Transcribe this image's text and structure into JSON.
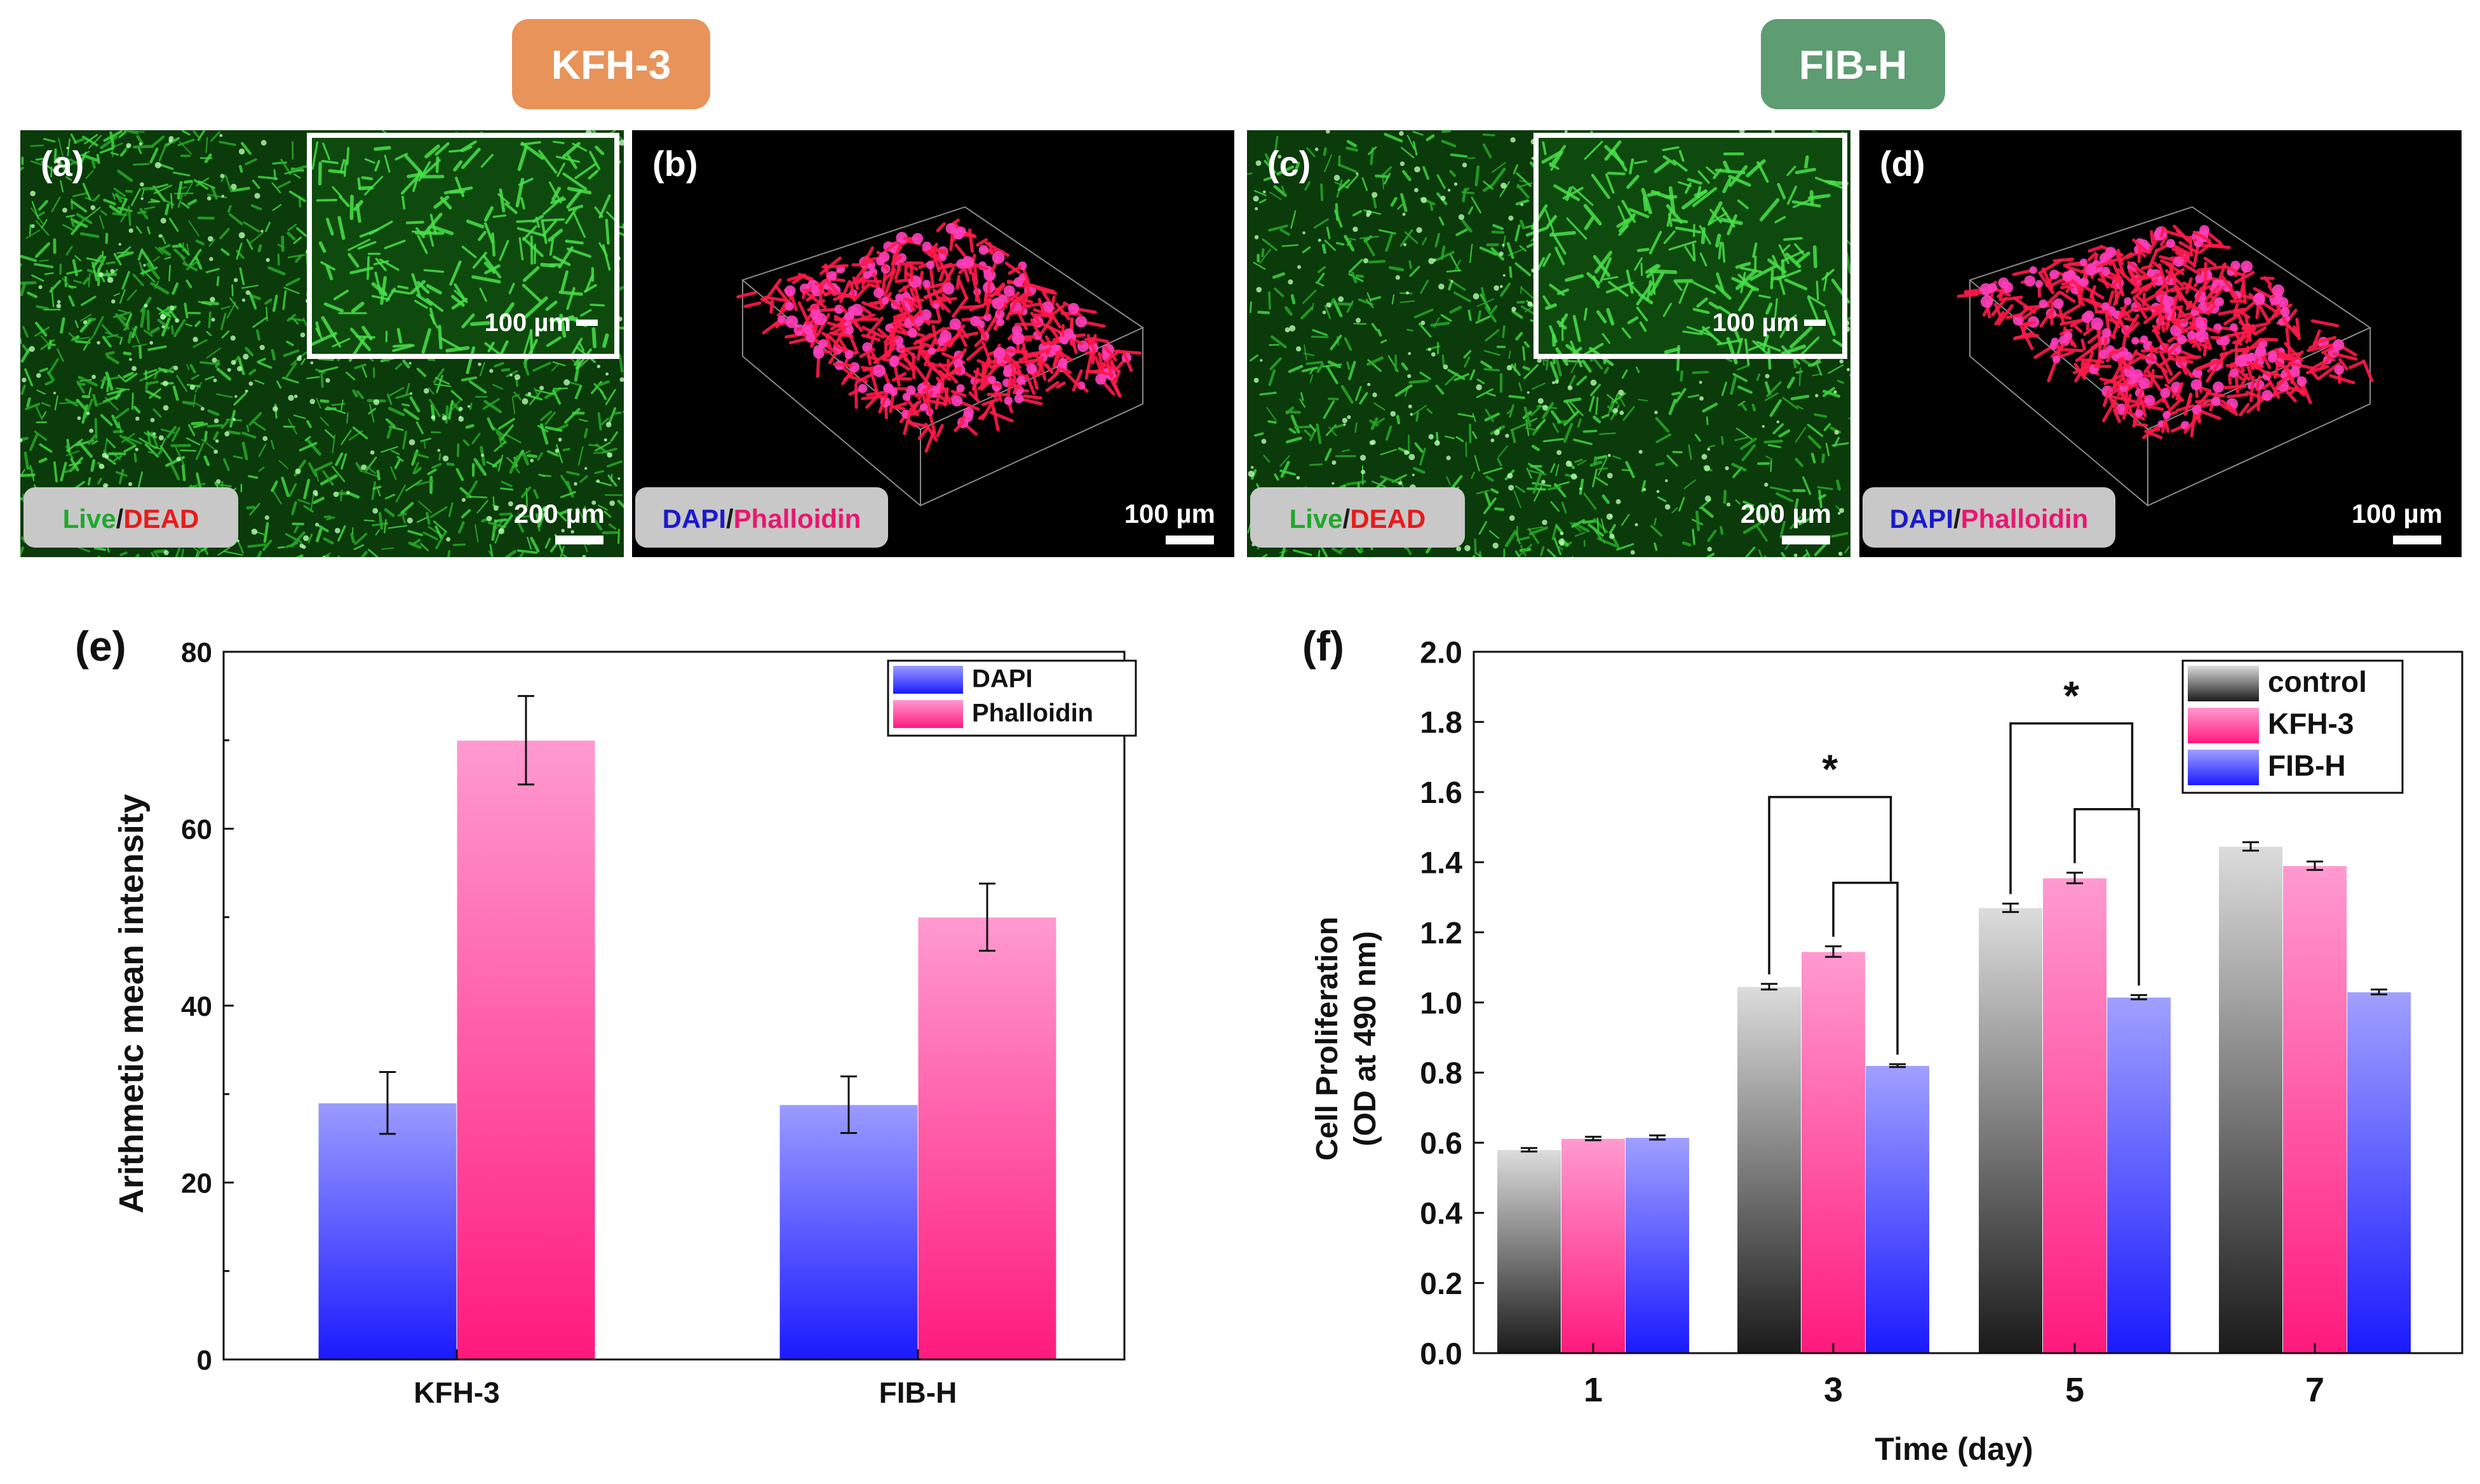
{
  "header_labels": [
    {
      "text": "KFH-3",
      "color": "#e8935a"
    },
    {
      "text": "FIB-H",
      "color": "#5e9c72"
    }
  ],
  "micrographs": [
    {
      "letter": "(a)",
      "kind": "live-dead",
      "has_inset": true,
      "inset_scale": "100 µm",
      "scale": "200 µm",
      "stain": [
        {
          "text": "Live",
          "color": "#1fa82b"
        },
        {
          "text": "/",
          "color": "#1a1a1a"
        },
        {
          "text": "DEAD",
          "color": "#e81b1b"
        }
      ]
    },
    {
      "letter": "(b)",
      "kind": "confocal-3d",
      "has_inset": false,
      "scale": "100 µm",
      "stain": [
        {
          "text": "DAPI",
          "color": "#1a1acc"
        },
        {
          "text": "/",
          "color": "#1a1a1a"
        },
        {
          "text": "Phalloidin",
          "color": "#e8176f"
        }
      ]
    },
    {
      "letter": "(c)",
      "kind": "live-dead",
      "has_inset": true,
      "inset_scale": "100 µm",
      "scale": "200 µm",
      "stain": [
        {
          "text": "Live",
          "color": "#1fa82b"
        },
        {
          "text": "/",
          "color": "#1a1a1a"
        },
        {
          "text": "DEAD",
          "color": "#e81b1b"
        }
      ]
    },
    {
      "letter": "(d)",
      "kind": "confocal-3d",
      "has_inset": false,
      "scale": "100 µm",
      "stain": [
        {
          "text": "DAPI",
          "color": "#1a1acc"
        },
        {
          "text": "/",
          "color": "#1a1a1a"
        },
        {
          "text": "Phalloidin",
          "color": "#e8176f"
        }
      ]
    }
  ],
  "chart_data": [
    {
      "panel": "(e)",
      "type": "bar",
      "categories": [
        "KFH-3",
        "FIB-H"
      ],
      "series": [
        {
          "name": "DAPI",
          "values": [
            29,
            28.8
          ],
          "errors": [
            3.5,
            3.2
          ],
          "color_top": "#9b9bff",
          "color_bottom": "#1a1aff"
        },
        {
          "name": "Phalloidin",
          "values": [
            70,
            50
          ],
          "errors": [
            5,
            3.8
          ],
          "color_top": "#ff9ad0",
          "color_bottom": "#ff1a7d"
        }
      ],
      "xlabel": "",
      "ylabel": "Arithmetic mean intensity",
      "ylim": [
        0,
        80
      ],
      "yticks": [
        "0",
        "20",
        "40",
        "60",
        "80"
      ],
      "legend_position": "top-right",
      "grid": false
    },
    {
      "panel": "(f)",
      "type": "bar",
      "categories": [
        "1",
        "3",
        "5",
        "7"
      ],
      "series": [
        {
          "name": "control",
          "values": [
            0.58,
            1.045,
            1.27,
            1.445
          ],
          "errors": [
            0.005,
            0.008,
            0.012,
            0.012
          ],
          "color_top": "#dcdcdc",
          "color_bottom": "#1a1a1a"
        },
        {
          "name": "KFH-3",
          "values": [
            0.612,
            1.145,
            1.355,
            1.39
          ],
          "errors": [
            0.005,
            0.015,
            0.015,
            0.012
          ],
          "color_top": "#ff9ad0",
          "color_bottom": "#ff1a7d"
        },
        {
          "name": "FIB-H",
          "values": [
            0.615,
            0.82,
            1.015,
            1.03
          ],
          "errors": [
            0.006,
            0.004,
            0.006,
            0.007
          ],
          "color_top": "#a0a0ff",
          "color_bottom": "#1a1aff"
        }
      ],
      "xlabel": "Time (day)",
      "ylabel_lines": [
        "Cell Proliferation",
        "(OD at 490 nm)"
      ],
      "ylim": [
        0,
        2.0
      ],
      "yticks": [
        "0.0",
        "0.2",
        "0.4",
        "0.6",
        "0.8",
        "1.0",
        "1.2",
        "1.4",
        "1.6",
        "1.8",
        "2.0"
      ],
      "legend_position": "top-right",
      "grid": false,
      "significance": [
        {
          "category": "3",
          "pairs": [
            [
              "control",
              "KFH-3"
            ],
            [
              "KFH-3",
              "FIB-H"
            ]
          ],
          "mark": "*"
        },
        {
          "category": "5",
          "pairs": [
            [
              "control",
              "KFH-3"
            ],
            [
              "KFH-3",
              "FIB-H"
            ]
          ],
          "mark": "*"
        }
      ]
    }
  ]
}
